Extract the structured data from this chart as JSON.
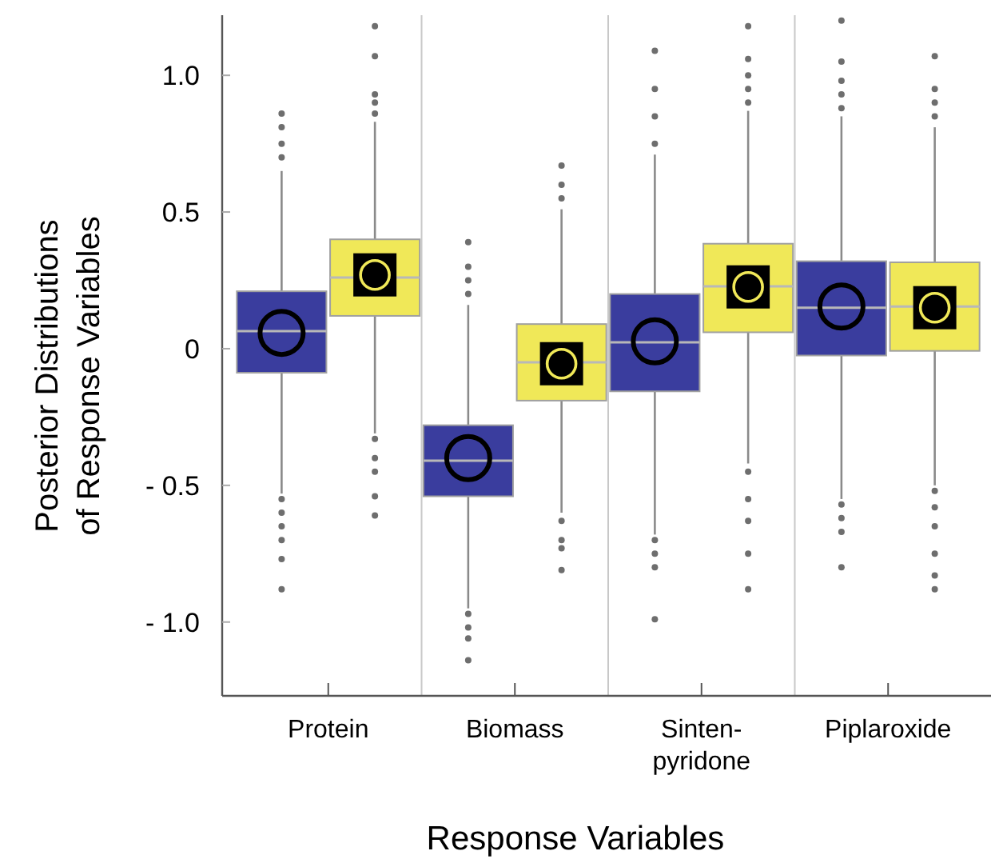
{
  "chart_data": {
    "type": "box",
    "xlabel": "Response Variables",
    "ylabel": "Posterior Distributions of Response Variables",
    "categories": [
      "Protein",
      "Biomass",
      "Sinten-pyridone",
      "Piplaroxide"
    ],
    "ylim": [
      -1.27,
      1.22
    ],
    "yticks": [
      {
        "value": -1.0,
        "label": "- 1.0"
      },
      {
        "value": -0.5,
        "label": "- 0.5"
      },
      0,
      {
        "value": 0.5,
        "label": "0.5"
      },
      {
        "value": 1.0,
        "label": "1.0"
      }
    ],
    "grid": false,
    "series": [
      {
        "color": "#3a3d9e",
        "marker": "circle",
        "boxes": [
          {
            "low": -0.53,
            "q1": -0.088,
            "median": 0.064,
            "q3": 0.21,
            "high": 0.65,
            "mean": 0.058,
            "outliers": [
              0.7,
              0.75,
              0.81,
              0.86,
              -0.55,
              -0.6,
              -0.65,
              -0.7,
              -0.77,
              -0.88
            ]
          },
          {
            "low": -0.95,
            "q1": -0.54,
            "median": -0.41,
            "q3": -0.28,
            "high": 0.16,
            "mean": -0.4,
            "outliers": [
              0.2,
              0.25,
              0.3,
              0.39,
              -0.97,
              -1.02,
              -1.06,
              -1.14
            ]
          },
          {
            "low": -0.68,
            "q1": -0.156,
            "median": 0.023,
            "q3": 0.2,
            "high": 0.71,
            "mean": 0.027,
            "outliers": [
              0.75,
              0.85,
              0.95,
              1.09,
              -0.7,
              -0.75,
              -0.8,
              -0.99
            ]
          },
          {
            "low": -0.55,
            "q1": -0.025,
            "median": 0.15,
            "q3": 0.32,
            "high": 0.85,
            "mean": 0.154,
            "outliers": [
              0.88,
              0.93,
              0.98,
              1.05,
              1.2,
              -0.57,
              -0.62,
              -0.67,
              -0.8
            ]
          }
        ]
      },
      {
        "color": "#f0e858",
        "marker": "square",
        "boxes": [
          {
            "low": -0.31,
            "q1": 0.12,
            "median": 0.26,
            "q3": 0.4,
            "high": 0.83,
            "mean": 0.27,
            "outliers": [
              0.86,
              0.9,
              0.93,
              1.07,
              1.18,
              -0.33,
              -0.4,
              -0.45,
              -0.54,
              -0.61
            ]
          },
          {
            "low": -0.6,
            "q1": -0.19,
            "median": -0.05,
            "q3": 0.09,
            "high": 0.51,
            "mean": -0.055,
            "outliers": [
              0.55,
              0.6,
              0.67,
              -0.63,
              -0.7,
              -0.73,
              -0.81
            ]
          },
          {
            "low": -0.42,
            "q1": 0.06,
            "median": 0.228,
            "q3": 0.384,
            "high": 0.87,
            "mean": 0.226,
            "outliers": [
              0.9,
              0.95,
              1.0,
              1.06,
              1.18,
              -0.45,
              -0.55,
              -0.63,
              -0.75,
              -0.88
            ]
          },
          {
            "low": -0.5,
            "q1": -0.008,
            "median": 0.154,
            "q3": 0.316,
            "high": 0.81,
            "mean": 0.15,
            "outliers": [
              0.85,
              0.9,
              0.95,
              1.07,
              -0.52,
              -0.58,
              -0.65,
              -0.75,
              -0.83,
              -0.88
            ]
          }
        ]
      }
    ]
  }
}
